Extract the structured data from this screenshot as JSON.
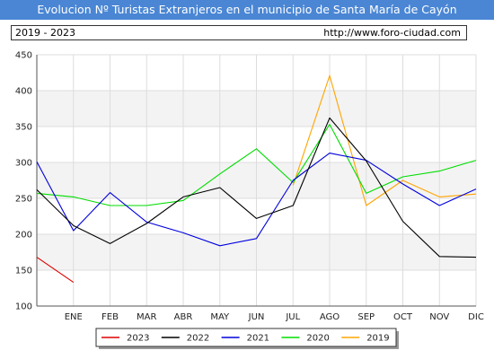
{
  "header": {
    "title": "Evolucion Nº Turistas Extranjeros en el municipio de Santa María de Cayón",
    "period": "2019 - 2023",
    "url": "http://www.foro-ciudad.com"
  },
  "chart_data": {
    "type": "line",
    "title": "Evolucion Nº Turistas Extranjeros en el municipio de Santa María de Cayón",
    "categories": [
      "",
      "ENE",
      "FEB",
      "MAR",
      "ABR",
      "MAY",
      "JUN",
      "JUL",
      "AGO",
      "SEP",
      "OCT",
      "NOV",
      "DIC"
    ],
    "ylim": [
      100,
      450
    ],
    "yticks": [
      100,
      150,
      200,
      250,
      300,
      350,
      400,
      450
    ],
    "grid": true,
    "legend_position": "bottom",
    "series": [
      {
        "name": "2023",
        "color": "#dd0000",
        "values": [
          168,
          133,
          null,
          null,
          null,
          null,
          null,
          null,
          null,
          null,
          null,
          null,
          null
        ]
      },
      {
        "name": "2022",
        "color": "#000000",
        "values": [
          262,
          212,
          187,
          215,
          252,
          265,
          222,
          240,
          362,
          302,
          218,
          169,
          168
        ]
      },
      {
        "name": "2021",
        "color": "#0000dd",
        "values": [
          301,
          205,
          258,
          217,
          202,
          184,
          194,
          275,
          313,
          303,
          270,
          240,
          263
        ]
      },
      {
        "name": "2020",
        "color": "#00dd00",
        "values": [
          257,
          252,
          240,
          240,
          247,
          284,
          319,
          272,
          353,
          257,
          280,
          288,
          303
        ]
      },
      {
        "name": "2019",
        "color": "#ffa500",
        "values": [
          null,
          null,
          null,
          null,
          null,
          null,
          null,
          268,
          421,
          240,
          275,
          252,
          256
        ]
      }
    ]
  }
}
